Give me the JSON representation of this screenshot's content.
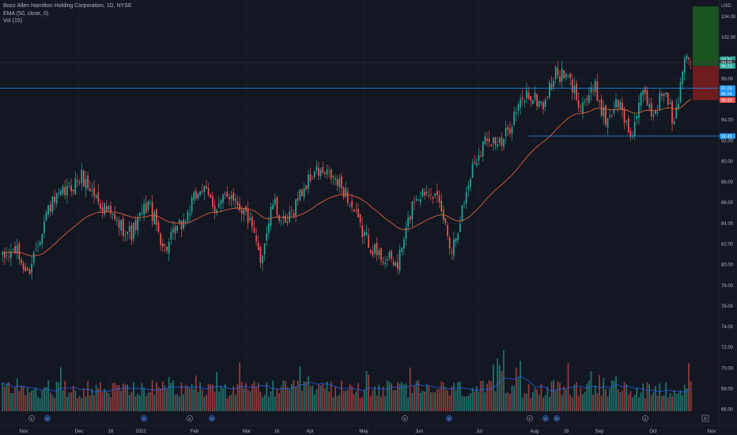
{
  "legend": {
    "title": "Booz Allen Hamilton Holding Corporation, 1D, NYSE",
    "ema": "EMA (50, close, 0)",
    "vol": "Vol (15)"
  },
  "colors": {
    "background": "#131722",
    "up": "#26a69a",
    "down": "#ef5350",
    "up_vol": "#1f6f68",
    "down_vol": "#8f3a3a",
    "ema": "#e0603a",
    "vol_ma": "#2962ff",
    "hline": "#2196f3",
    "grid": "#1e222d"
  },
  "icons": {
    "earnings": "E",
    "dividend": "D",
    "log_toggle": "E"
  },
  "chart_data": {
    "type": "candlestick",
    "currency": "USD",
    "yaxis": {
      "ticks": [
        "104.00",
        "102.00",
        "100.00",
        "98.00",
        "96.00",
        "94.00",
        "92.00",
        "90.00",
        "88.00",
        "86.00",
        "84.00",
        "82.00",
        "80.00",
        "78.00",
        "76.00",
        "74.00",
        "72.00",
        "70.00",
        "68.00",
        "66.00"
      ],
      "ylim": [
        65.2,
        105.0
      ]
    },
    "xaxis": {
      "ticks": [
        "Nov",
        "Dec",
        "16",
        "2022",
        "Feb",
        "Mar",
        "16",
        "Apr",
        "May",
        "Jun",
        "Jul",
        "Aug",
        "16",
        "Sep",
        "Oct",
        "Nov"
      ]
    },
    "price_labels": [
      {
        "value": 99.85,
        "text": "99.85",
        "color": "#26a69a"
      },
      {
        "value": 99.55,
        "text": "99.55",
        "color": "#363a45"
      },
      {
        "value": 99.23,
        "text": "99.23",
        "color": "#26a69a"
      },
      {
        "value": 97.09,
        "text": "97.09",
        "color": "#2196f3"
      },
      {
        "value": 96.56,
        "text": "96.56",
        "color": "#2196f3"
      },
      {
        "value": 95.93,
        "text": "95.93",
        "color": "#ef5350"
      },
      {
        "value": 92.45,
        "text": "92.45",
        "color": "#2196f3"
      }
    ],
    "horizontal_lines": [
      {
        "value": 99.55,
        "color": "#363a45"
      },
      {
        "value": 97.09,
        "color": "#2196f3"
      },
      {
        "value": 92.45,
        "color": "#2196f3",
        "from_index": 253
      }
    ],
    "zones": [
      {
        "from": 99.23,
        "to": 105.0,
        "color": "#1b5e20"
      },
      {
        "from": 95.93,
        "to": 99.23,
        "color": "#7f1d1d"
      }
    ],
    "anchors": [
      {
        "i": 0,
        "p": 80.5
      },
      {
        "i": 6,
        "p": 81.5
      },
      {
        "i": 12,
        "p": 79.0
      },
      {
        "i": 22,
        "p": 85.5
      },
      {
        "i": 30,
        "p": 87.0
      },
      {
        "i": 38,
        "p": 88.5
      },
      {
        "i": 45,
        "p": 86.5
      },
      {
        "i": 55,
        "p": 84.0
      },
      {
        "i": 62,
        "p": 83.0
      },
      {
        "i": 70,
        "p": 86.0
      },
      {
        "i": 78,
        "p": 81.5
      },
      {
        "i": 88,
        "p": 84.5
      },
      {
        "i": 95,
        "p": 87.5
      },
      {
        "i": 103,
        "p": 85.5
      },
      {
        "i": 110,
        "p": 87.0
      },
      {
        "i": 118,
        "p": 84.5
      },
      {
        "i": 124,
        "p": 80.5
      },
      {
        "i": 130,
        "p": 86.0
      },
      {
        "i": 136,
        "p": 83.5
      },
      {
        "i": 142,
        "p": 86.5
      },
      {
        "i": 150,
        "p": 89.0
      },
      {
        "i": 158,
        "p": 88.5
      },
      {
        "i": 165,
        "p": 87.0
      },
      {
        "i": 172,
        "p": 83.5
      },
      {
        "i": 180,
        "p": 81.0
      },
      {
        "i": 190,
        "p": 80.0
      },
      {
        "i": 198,
        "p": 86.5
      },
      {
        "i": 206,
        "p": 87.5
      },
      {
        "i": 212,
        "p": 84.5
      },
      {
        "i": 216,
        "p": 81.5
      },
      {
        "i": 220,
        "p": 84.5
      },
      {
        "i": 226,
        "p": 89.5
      },
      {
        "i": 233,
        "p": 92.5
      },
      {
        "i": 240,
        "p": 91.5
      },
      {
        "i": 246,
        "p": 94.5
      },
      {
        "i": 252,
        "p": 96.5
      },
      {
        "i": 260,
        "p": 95.5
      },
      {
        "i": 266,
        "p": 98.5
      },
      {
        "i": 272,
        "p": 98.0
      },
      {
        "i": 278,
        "p": 95.5
      },
      {
        "i": 285,
        "p": 97.0
      },
      {
        "i": 290,
        "p": 94.0
      },
      {
        "i": 296,
        "p": 95.8
      },
      {
        "i": 302,
        "p": 92.5
      },
      {
        "i": 308,
        "p": 96.5
      },
      {
        "i": 313,
        "p": 94.5
      },
      {
        "i": 318,
        "p": 97.0
      },
      {
        "i": 323,
        "p": 93.5
      },
      {
        "i": 326,
        "p": 97.5
      },
      {
        "i": 328,
        "p": 100.5
      },
      {
        "i": 331,
        "p": 99.55
      }
    ],
    "candle_count": 332,
    "ema_period": 50
  }
}
